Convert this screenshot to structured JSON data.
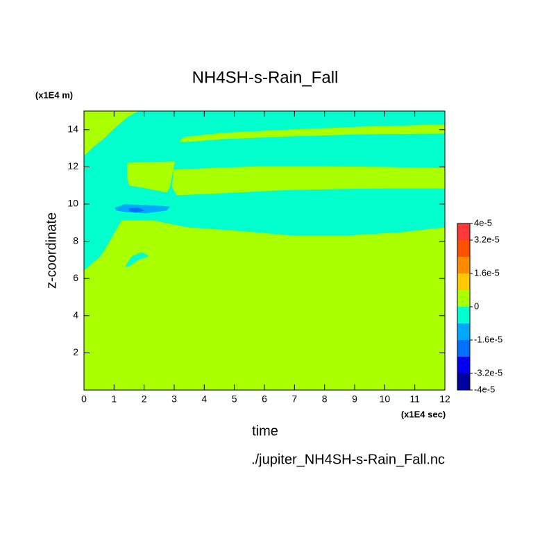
{
  "chart_data": {
    "type": "contour",
    "title": "NH4SH-s-Rain_Fall",
    "xlabel": "time",
    "ylabel": "z-coordinate",
    "xunit": "(x1E4 sec)",
    "yunit": "(x1E4 m)",
    "source": "./jupiter_NH4SH-s-Rain_Fall.nc",
    "xlim": [
      0,
      12
    ],
    "xticks": [
      0,
      1,
      2,
      3,
      4,
      5,
      6,
      7,
      8,
      9,
      10,
      11,
      12
    ],
    "ylim": [
      0,
      15
    ],
    "yticks": [
      2,
      4,
      6,
      8,
      10,
      12,
      14
    ],
    "levels": [
      -4e-05,
      -3.2e-05,
      -2.4e-05,
      -1.6e-05,
      -8e-06,
      0,
      8e-06,
      1.6e-05,
      2.4e-05,
      3.2e-05,
      4e-05
    ],
    "colors": [
      "#0000a0",
      "#0000f0",
      "#0070ff",
      "#00a8ff",
      "#00ffcc",
      "#aaff00",
      "#ffc800",
      "#ff8c00",
      "#ff5000",
      "#ff3838"
    ],
    "cticks": [
      {
        "value": 4e-05,
        "label": "4e-5"
      },
      {
        "value": 3.2e-05,
        "label": "3.2e-5"
      },
      {
        "value": 1.6e-05,
        "label": "1.6e-5"
      },
      0,
      {
        "value": -1.6e-05,
        "label": "-1.6e-5"
      },
      {
        "value": -3.2e-05,
        "label": "-3.2e-5"
      },
      {
        "value": -4e-05,
        "label": "-4e-5"
      }
    ],
    "regions": [
      {
        "value": 4e-06,
        "points": [
          [
            0,
            0
          ],
          [
            12,
            0
          ],
          [
            12,
            15
          ],
          [
            0,
            15
          ]
        ]
      },
      {
        "value": -4e-06,
        "points": [
          [
            0,
            6.44
          ],
          [
            0.55,
            7.19
          ],
          [
            0.9,
            8.12
          ],
          [
            1.25,
            9.13
          ],
          [
            2.28,
            9.13
          ],
          [
            3.44,
            8.75
          ],
          [
            5.05,
            8.57
          ],
          [
            6.9,
            8.31
          ],
          [
            8.75,
            8.31
          ],
          [
            10.59,
            8.49
          ],
          [
            12,
            8.75
          ],
          [
            12,
            15
          ],
          [
            0,
            15
          ]
        ]
      },
      {
        "value": 4e-06,
        "points": [
          [
            0,
            15
          ],
          [
            1.82,
            15
          ],
          [
            1.48,
            14.71
          ],
          [
            1.02,
            14.08
          ],
          [
            0.67,
            13.53
          ],
          [
            0.32,
            13.08
          ],
          [
            0,
            12.6
          ]
        ]
      },
      {
        "value": 4e-06,
        "points": [
          [
            3.16,
            13.34
          ],
          [
            3.32,
            13.6
          ],
          [
            4.59,
            13.83
          ],
          [
            6.9,
            14.01
          ],
          [
            9.21,
            14.16
          ],
          [
            12,
            14.28
          ],
          [
            12,
            13.79
          ],
          [
            9.21,
            13.75
          ],
          [
            6.9,
            13.64
          ],
          [
            4.59,
            13.49
          ],
          [
            3.44,
            13.34
          ]
        ]
      },
      {
        "value": 4e-06,
        "points": [
          [
            1.43,
            12.22
          ],
          [
            3.02,
            12.3
          ],
          [
            2.86,
            10.92
          ],
          [
            2.75,
            10.62
          ],
          [
            1.82,
            10.92
          ],
          [
            1.5,
            10.99
          ],
          [
            1.43,
            11.47
          ]
        ]
      },
      {
        "value": 4e-06,
        "points": [
          [
            2.98,
            11.85
          ],
          [
            4.13,
            11.93
          ],
          [
            5.98,
            12.04
          ],
          [
            7.59,
            12.04
          ],
          [
            9.9,
            12
          ],
          [
            12,
            11.93
          ],
          [
            12,
            10.84
          ],
          [
            10.13,
            10.84
          ],
          [
            8.29,
            10.8
          ],
          [
            6.44,
            10.73
          ],
          [
            5.05,
            10.62
          ],
          [
            4.13,
            10.54
          ],
          [
            3.09,
            10.47
          ],
          [
            2.93,
            10.92
          ]
        ]
      },
      {
        "value": -1.2e-05,
        "points": [
          [
            1.02,
            9.8
          ],
          [
            1.36,
            9.99
          ],
          [
            2.05,
            9.95
          ],
          [
            2.86,
            9.87
          ],
          [
            2.75,
            9.65
          ],
          [
            2.05,
            9.5
          ],
          [
            1.36,
            9.57
          ],
          [
            1.08,
            9.65
          ]
        ]
      },
      {
        "value": -2e-05,
        "points": [
          [
            1.48,
            9.76
          ],
          [
            1.82,
            9.8
          ],
          [
            2.01,
            9.65
          ],
          [
            1.71,
            9.54
          ],
          [
            1.52,
            9.61
          ]
        ]
      },
      {
        "value": -4e-06,
        "points": [
          [
            1.36,
            6.63
          ],
          [
            1.59,
            7.19
          ],
          [
            1.94,
            7.41
          ],
          [
            2.17,
            7.19
          ],
          [
            1.82,
            7
          ],
          [
            1.48,
            6.63
          ]
        ]
      }
    ]
  }
}
